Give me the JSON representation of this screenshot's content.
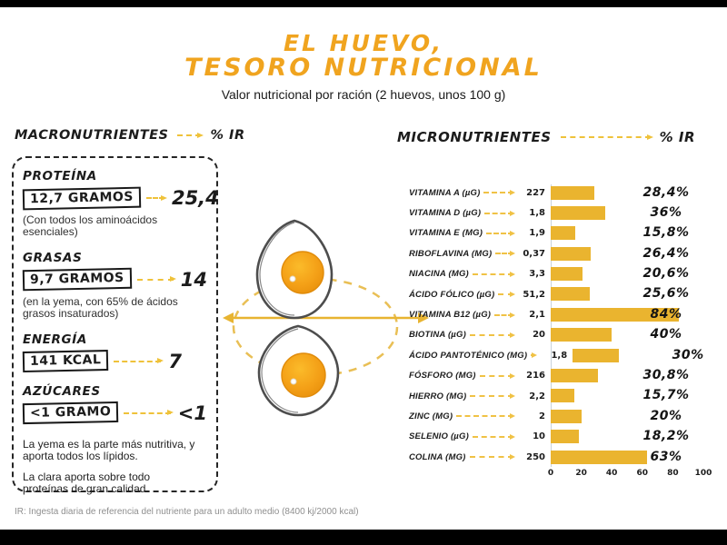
{
  "page": {
    "letterbox_color": "#000000",
    "background": "#ffffff"
  },
  "header": {
    "title_line1": "EL HUEVO,",
    "title_line2": "TESORO NUTRICIONAL",
    "subtitle": "Valor nutricional por ración (2 huevos, unos 100 g)",
    "title_color": "#F0A41F"
  },
  "macros": {
    "heading": "MACRONUTRIENTES",
    "heading_suffix": "% IR",
    "items": [
      {
        "name": "PROTEÍNA",
        "amount": "12,7 GRAMOS",
        "ir": "25,4",
        "note": "(Con todos los aminoácidos esenciales)"
      },
      {
        "name": "GRASAS",
        "amount": "9,7 GRAMOS",
        "ir": "14",
        "note": "(en la yema, con 65% de ácidos grasos insaturados)"
      },
      {
        "name": "ENERGÍA",
        "amount": "141 KCAL",
        "ir": "7",
        "note": ""
      },
      {
        "name": "AZÚCARES",
        "amount": "<1 GRAMO",
        "ir": "<1",
        "note": ""
      }
    ],
    "footnotes": [
      "La yema es la parte más nutritiva, y aporta todos los lípidos.",
      "La clara aporta sobre todo proteínas de gran calidad."
    ]
  },
  "micros": {
    "heading": "MICRONUTRIENTES",
    "heading_suffix": "% IR"
  },
  "chart_data": {
    "type": "bar",
    "title": "MICRONUTRIENTES",
    "xlabel": "% IR",
    "orientation": "horizontal",
    "categories": [
      "VITAMINA A (µG)",
      "VITAMINA D (µG)",
      "VITAMINA E (MG)",
      "RIBOFLAVINA (MG)",
      "NIACINA (MG)",
      "ÁCIDO FÓLICO (µG)",
      "VITAMINA B12 (µG)",
      "BIOTINA (µG)",
      "ÁCIDO PANTOTÉNICO (MG)",
      "FÓSFORO (MG)",
      "HIERRO (MG)",
      "ZINC (MG)",
      "SELENIO (µG)",
      "COLINA (MG)"
    ],
    "amounts": [
      "227",
      "1,8",
      "1,9",
      "0,37",
      "3,3",
      "51,2",
      "2,1",
      "20",
      "1,8",
      "216",
      "2,2",
      "2",
      "10",
      "250"
    ],
    "values": [
      28.4,
      36,
      15.8,
      26.4,
      20.6,
      25.6,
      84,
      40,
      30,
      30.8,
      15.7,
      20,
      18.2,
      63
    ],
    "percent_labels": [
      "28,4%",
      "36%",
      "15,8%",
      "26,4%",
      "20,6%",
      "25,6%",
      "84%",
      "40%",
      "30%",
      "30,8%",
      "15,7%",
      "20%",
      "18,2%",
      "63%"
    ],
    "x_ticks": [
      0,
      20,
      40,
      60,
      80,
      100
    ],
    "xlim": [
      0,
      100
    ],
    "grid": false,
    "legend": false,
    "bar_color": "#EAB42F",
    "arrow_color": "#F0C245"
  },
  "footer": {
    "note": "IR: Ingesta diaria de referencia del nutriente para un adulto medio (8400 kj/2000 kcal)"
  }
}
